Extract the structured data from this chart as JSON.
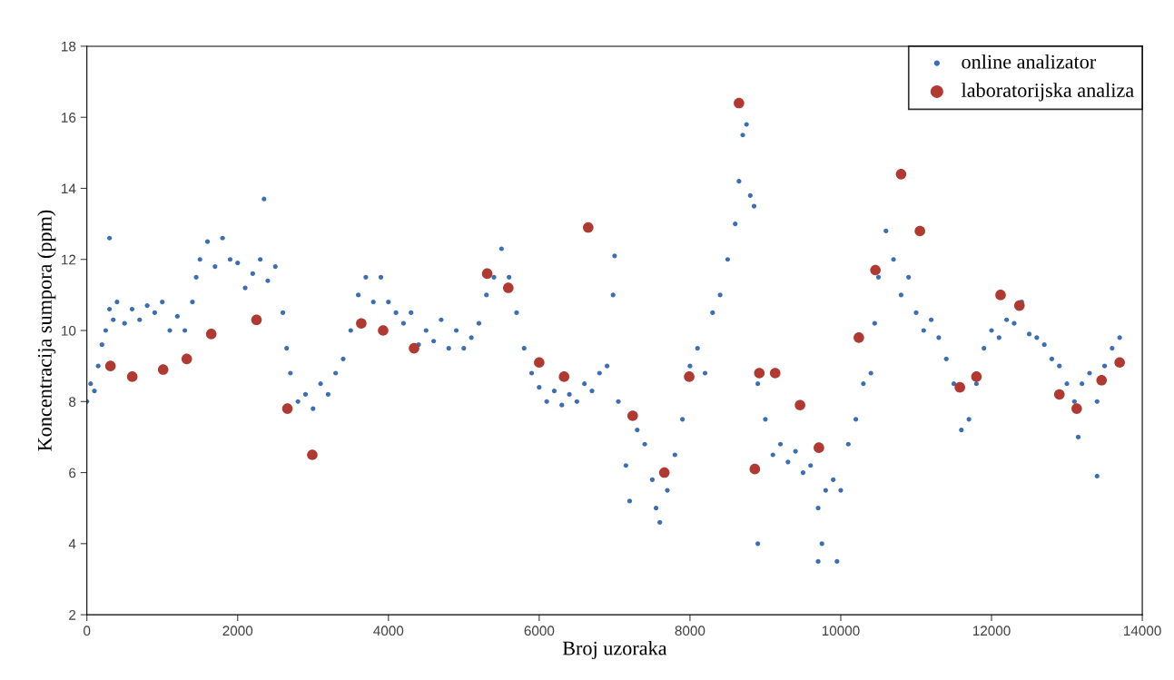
{
  "chart_data": {
    "type": "scatter",
    "xlabel": "Broj uzoraka",
    "ylabel": "Koncentracija sumpora (ppm)",
    "xlim": [
      0,
      14000
    ],
    "xticks": [
      0,
      2000,
      4000,
      6000,
      8000,
      10000,
      12000,
      14000
    ],
    "ylim": [
      2,
      18
    ],
    "yticks": [
      2,
      4,
      6,
      8,
      10,
      12,
      14,
      16,
      18
    ],
    "grid": false,
    "legend": "top right",
    "marker": "circle",
    "series": [
      {
        "name": "online analizator",
        "color": "#3c6eb4",
        "x": [
          0,
          50,
          100,
          150,
          200,
          250,
          300,
          300,
          350,
          400,
          500,
          600,
          700,
          800,
          900,
          1000,
          1100,
          1200,
          1300,
          1400,
          1450,
          1500,
          1600,
          1700,
          1800,
          1900,
          2000,
          2100,
          2200,
          2300,
          2350,
          2400,
          2500,
          2600,
          2650,
          2700,
          2800,
          2900,
          3000,
          3100,
          3200,
          3300,
          3400,
          3500,
          3600,
          3700,
          3800,
          3900,
          4000,
          4100,
          4200,
          4300,
          4400,
          4500,
          4600,
          4700,
          4800,
          4900,
          5000,
          5100,
          5200,
          5300,
          5400,
          5500,
          5600,
          5700,
          5800,
          5900,
          6000,
          6100,
          6200,
          6300,
          6400,
          6500,
          6600,
          6700,
          6800,
          6900,
          6980,
          7000,
          7050,
          7150,
          7200,
          7300,
          7400,
          7500,
          7550,
          7600,
          7700,
          7800,
          7900,
          8000,
          8100,
          8200,
          8300,
          8400,
          8500,
          8600,
          8650,
          8700,
          8750,
          8800,
          8850,
          8900,
          8900,
          9000,
          9100,
          9200,
          9300,
          9400,
          9500,
          9600,
          9700,
          9700,
          9750,
          9800,
          9900,
          9950,
          10000,
          10100,
          10200,
          10300,
          10400,
          10450,
          10500,
          10600,
          10700,
          10800,
          10900,
          11000,
          11100,
          11200,
          11300,
          11400,
          11500,
          11600,
          11700,
          11800,
          11900,
          12000,
          12100,
          12200,
          12300,
          12400,
          12500,
          12600,
          12700,
          12800,
          12900,
          13000,
          13100,
          13150,
          13200,
          13300,
          13400,
          13400,
          13500,
          13600,
          13700
        ],
        "values": [
          8.0,
          8.5,
          8.3,
          9.0,
          9.6,
          10.0,
          10.6,
          12.6,
          10.3,
          10.8,
          10.2,
          10.6,
          10.3,
          10.7,
          10.5,
          10.8,
          10.0,
          10.4,
          10.0,
          10.8,
          11.5,
          12.0,
          12.5,
          11.8,
          12.6,
          12.0,
          11.9,
          11.2,
          11.6,
          12.0,
          13.7,
          11.4,
          11.8,
          10.5,
          9.5,
          8.8,
          8.0,
          8.2,
          7.8,
          8.5,
          8.2,
          8.8,
          9.2,
          10.0,
          11.0,
          11.5,
          10.8,
          11.5,
          10.8,
          10.5,
          10.2,
          10.5,
          9.6,
          10.0,
          9.7,
          10.3,
          9.5,
          10.0,
          9.5,
          9.8,
          10.2,
          11.0,
          11.5,
          12.3,
          11.5,
          10.5,
          9.5,
          8.8,
          8.4,
          8.0,
          8.3,
          7.9,
          8.2,
          8.0,
          8.5,
          8.3,
          8.8,
          9.0,
          11.0,
          12.1,
          8.0,
          6.2,
          5.2,
          7.2,
          6.8,
          5.8,
          5.0,
          4.6,
          5.5,
          6.5,
          7.5,
          9.0,
          9.5,
          8.8,
          10.5,
          11.0,
          12.0,
          13.0,
          14.2,
          15.5,
          15.8,
          13.8,
          13.5,
          8.5,
          4.0,
          7.5,
          6.5,
          6.8,
          6.3,
          6.6,
          6.0,
          6.2,
          5.0,
          3.5,
          4.0,
          5.5,
          5.8,
          3.5,
          5.5,
          6.8,
          7.5,
          8.5,
          8.8,
          10.2,
          11.5,
          12.8,
          12.0,
          11.0,
          11.5,
          10.5,
          10.0,
          10.3,
          9.8,
          9.2,
          8.5,
          7.2,
          7.5,
          8.5,
          9.5,
          10.0,
          9.8,
          10.3,
          10.2,
          10.8,
          9.9,
          9.8,
          9.6,
          9.2,
          9.0,
          8.5,
          8.0,
          7.0,
          8.5,
          8.8,
          8.0,
          5.9,
          9.0,
          9.5,
          9.8
        ]
      },
      {
        "name": "laboratorijska analiza",
        "color": "#b03a32",
        "x": [
          313,
          602,
          1012,
          1325,
          1650,
          2250,
          2660,
          2990,
          3640,
          3930,
          4340,
          5310,
          5590,
          6000,
          6330,
          6650,
          7240,
          7660,
          7990,
          8650,
          8860,
          8920,
          9130,
          9460,
          9710,
          10240,
          10460,
          10800,
          11050,
          11580,
          11800,
          12120,
          12370,
          12900,
          13130,
          13460,
          13700
        ],
        "values": [
          9.0,
          8.7,
          8.9,
          9.2,
          9.9,
          10.3,
          7.8,
          6.5,
          10.2,
          10.0,
          9.5,
          11.6,
          11.2,
          9.1,
          8.7,
          12.9,
          7.6,
          6.0,
          8.7,
          16.4,
          6.1,
          8.8,
          8.8,
          7.9,
          6.7,
          9.8,
          11.7,
          14.4,
          12.8,
          8.4,
          8.7,
          11.0,
          10.7,
          8.2,
          7.8,
          8.6,
          9.1
        ]
      }
    ]
  }
}
